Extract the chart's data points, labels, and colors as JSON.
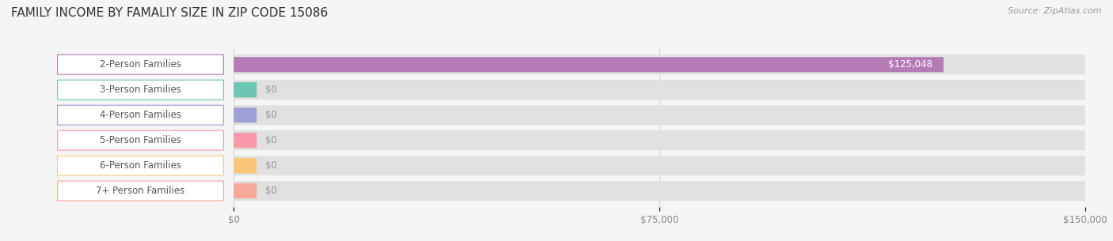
{
  "title": "FAMILY INCOME BY FAMALIY SIZE IN ZIP CODE 15086",
  "source": "Source: ZipAtlas.com",
  "categories": [
    "2-Person Families",
    "3-Person Families",
    "4-Person Families",
    "5-Person Families",
    "6-Person Families",
    "7+ Person Families"
  ],
  "values": [
    125048,
    0,
    0,
    0,
    0,
    0
  ],
  "bar_colors": [
    "#b57bb5",
    "#6cc5b0",
    "#a0a0d8",
    "#f898a8",
    "#f8c878",
    "#f8a898"
  ],
  "bar_labels": [
    "$125,048",
    "$0",
    "$0",
    "$0",
    "$0",
    "$0"
  ],
  "xlim": [
    0,
    150000
  ],
  "xticks": [
    0,
    75000,
    150000
  ],
  "xtick_labels": [
    "$0",
    "$75,000",
    "$150,000"
  ],
  "background_color": "#f5f5f5",
  "bar_bg_color": "#e0e0e0",
  "title_fontsize": 11,
  "source_fontsize": 8,
  "label_fontsize": 8.5,
  "tick_fontsize": 8.5
}
